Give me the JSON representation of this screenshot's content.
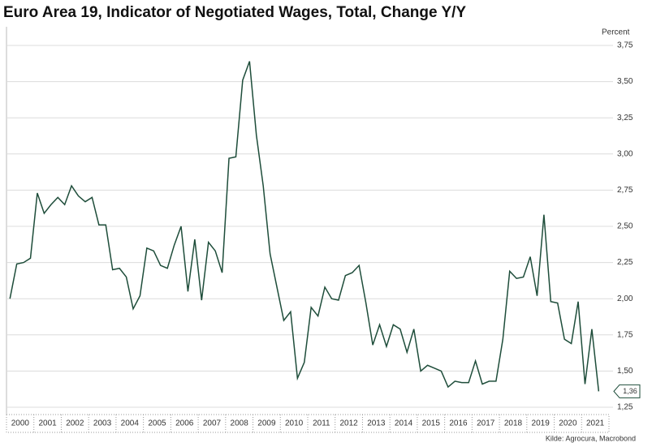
{
  "chart_data": {
    "type": "line",
    "title": "Euro Area 19, Indicator of Negotiated Wages, Total, Change Y/Y",
    "y_axis_label": "Percent",
    "source": "Kilde: Agrocura, Macrobond",
    "color": "#1e4d3a",
    "x": [
      2000.125,
      2000.375,
      2000.625,
      2000.875,
      2001.125,
      2001.375,
      2001.625,
      2001.875,
      2002.125,
      2002.375,
      2002.625,
      2002.875,
      2003.125,
      2003.375,
      2003.625,
      2003.875,
      2004.125,
      2004.375,
      2004.625,
      2004.875,
      2005.125,
      2005.375,
      2005.625,
      2005.875,
      2006.125,
      2006.375,
      2006.625,
      2006.875,
      2007.125,
      2007.375,
      2007.625,
      2007.875,
      2008.125,
      2008.375,
      2008.625,
      2008.875,
      2009.125,
      2009.375,
      2009.625,
      2009.875,
      2010.125,
      2010.375,
      2010.625,
      2010.875,
      2011.125,
      2011.375,
      2011.625,
      2011.875,
      2012.125,
      2012.375,
      2012.625,
      2012.875,
      2013.125,
      2013.375,
      2013.625,
      2013.875,
      2014.125,
      2014.375,
      2014.625,
      2014.875,
      2015.125,
      2015.375,
      2015.625,
      2015.875,
      2016.125,
      2016.375,
      2016.625,
      2016.875,
      2017.125,
      2017.375,
      2017.625,
      2017.875,
      2018.125,
      2018.375,
      2018.625,
      2018.875,
      2019.125,
      2019.375,
      2019.625,
      2019.875,
      2020.125,
      2020.375,
      2020.625,
      2020.875,
      2021.125,
      2021.375,
      2021.625
    ],
    "values": [
      2.0,
      2.24,
      2.25,
      2.28,
      2.73,
      2.59,
      2.65,
      2.7,
      2.65,
      2.78,
      2.71,
      2.67,
      2.7,
      2.51,
      2.51,
      2.2,
      2.21,
      2.15,
      1.93,
      2.02,
      2.35,
      2.33,
      2.23,
      2.21,
      2.37,
      2.5,
      2.05,
      2.41,
      1.99,
      2.39,
      2.33,
      2.18,
      2.97,
      2.98,
      3.51,
      3.64,
      3.13,
      2.78,
      2.31,
      2.08,
      1.85,
      1.91,
      1.45,
      1.56,
      1.94,
      1.88,
      2.08,
      2.0,
      1.99,
      2.16,
      2.18,
      2.23,
      1.97,
      1.68,
      1.82,
      1.67,
      1.82,
      1.79,
      1.63,
      1.79,
      1.5,
      1.54,
      1.52,
      1.5,
      1.39,
      1.43,
      1.42,
      1.42,
      1.57,
      1.41,
      1.43,
      1.43,
      1.72,
      2.19,
      2.14,
      2.15,
      2.29,
      2.02,
      2.58,
      1.98,
      1.97,
      1.72,
      1.69,
      1.98,
      1.41,
      1.79,
      1.36
    ],
    "value_labels": [
      null,
      null,
      null,
      null,
      null,
      null,
      null,
      null,
      null,
      null,
      null,
      null,
      null,
      null,
      null,
      null,
      null,
      null,
      null,
      null,
      null,
      null,
      null,
      null,
      null,
      null,
      null,
      null,
      null,
      null,
      null,
      null,
      null,
      null,
      null,
      null,
      null,
      null,
      null,
      null,
      null,
      null,
      null,
      null,
      null,
      null,
      null,
      null,
      null,
      null,
      null,
      null,
      null,
      null,
      null,
      null,
      null,
      null,
      null,
      null,
      null,
      null,
      null,
      null,
      null,
      null,
      null,
      null,
      null,
      null,
      null,
      null,
      null,
      null,
      null,
      null,
      null,
      null,
      null,
      null,
      null,
      null,
      null,
      null,
      null,
      null,
      "1,36"
    ],
    "xlim": [
      2000,
      2022
    ],
    "xticks": [
      2000,
      2001,
      2002,
      2003,
      2004,
      2005,
      2006,
      2007,
      2008,
      2009,
      2010,
      2011,
      2012,
      2013,
      2014,
      2015,
      2016,
      2017,
      2018,
      2019,
      2020,
      2021
    ],
    "ylim": [
      1.25,
      3.75
    ],
    "yticks": [
      {
        "value": 1.25,
        "label": "1,25"
      },
      {
        "value": 1.5,
        "label": "1,50"
      },
      {
        "value": 1.75,
        "label": "1,75"
      },
      {
        "value": 2.0,
        "label": "2,00"
      },
      {
        "value": 2.25,
        "label": "2,25"
      },
      {
        "value": 2.5,
        "label": "2,50"
      },
      {
        "value": 2.75,
        "label": "2,75"
      },
      {
        "value": 3.0,
        "label": "3,00"
      },
      {
        "value": 3.25,
        "label": "3,25"
      },
      {
        "value": 3.5,
        "label": "3,50"
      },
      {
        "value": 3.75,
        "label": "3,75"
      }
    ],
    "grid": true
  }
}
